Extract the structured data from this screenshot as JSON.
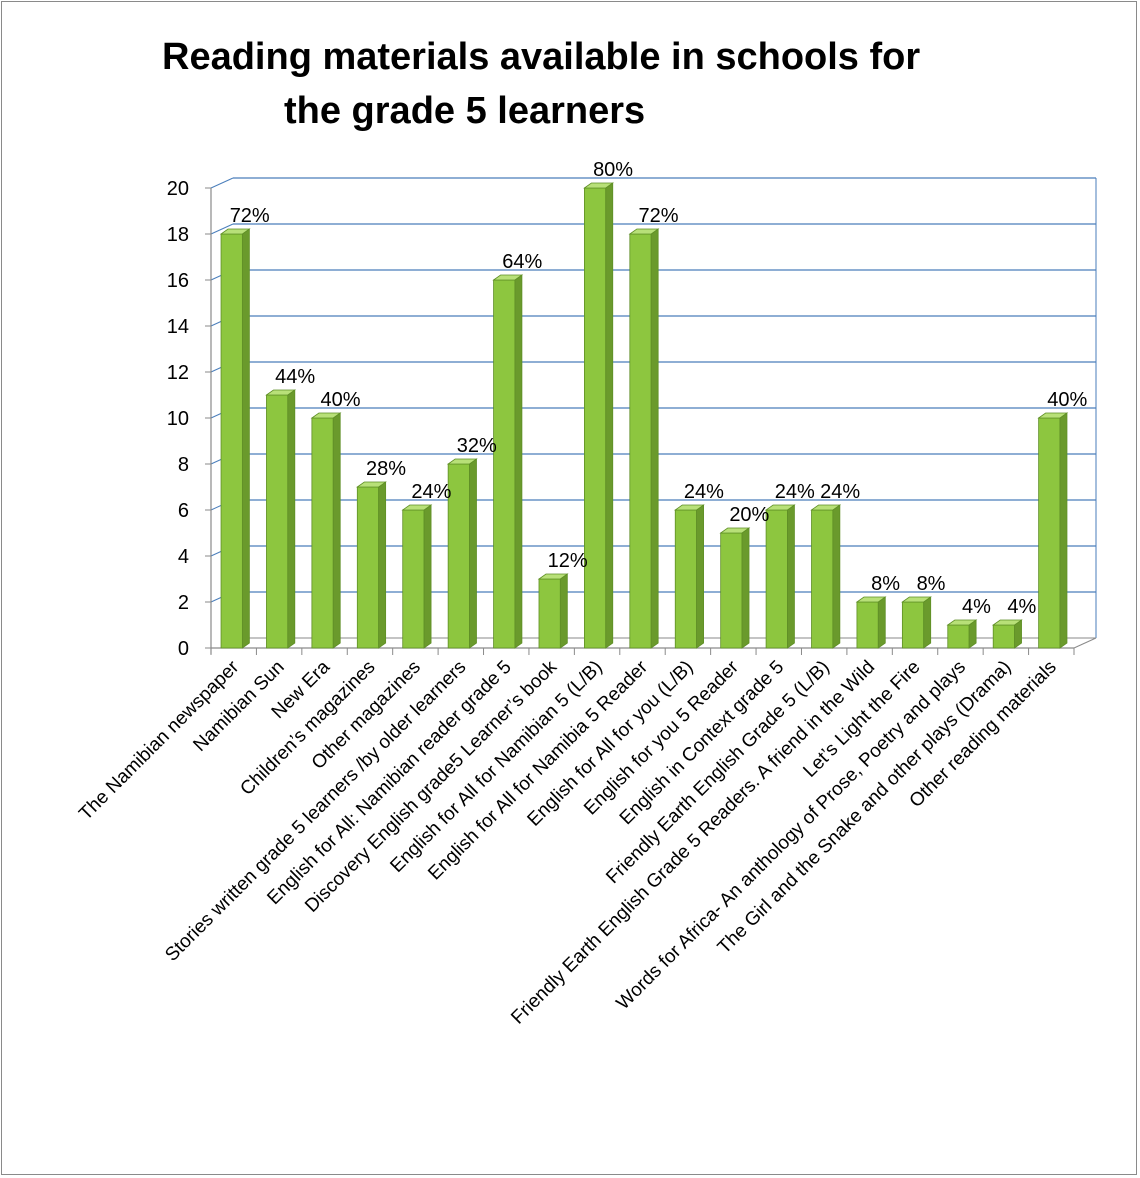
{
  "chart_data": {
    "type": "bar",
    "title": [
      "Reading materials available in schools for",
      "the grade 5 learners"
    ],
    "xlabel": "",
    "ylabel": "",
    "ylim": [
      0,
      20
    ],
    "yticks": [
      0,
      2,
      4,
      6,
      8,
      10,
      12,
      14,
      16,
      18,
      20
    ],
    "grid": true,
    "legend": "none",
    "bar_color": "#8dc63f",
    "bar_side_color": "#6a9a2c",
    "bar_top_color": "#b8e078",
    "grid_color": "#4a7ebb",
    "categories": [
      "The Namibian newspaper",
      "Namibian Sun",
      "New Era",
      "Children’s magazines",
      "Other magazines",
      "Stories written grade 5 learners /by older learners",
      "English for All: Namibian reader grade 5",
      "Discovery English grade5 Learner’s book",
      "English for All for Namibian 5 (L/B)",
      "English for All for Namibia 5 Reader",
      "English for All for you (L/B)",
      "English for you 5 Reader",
      "English in Context grade 5",
      "Friendly Earth English Grade 5 (L/B)",
      "Friendly Earth English Grade 5 Readers. A friend in the Wild",
      "Let’s Light the Fire",
      "Words for Africa- An anthology of Prose, Poetry and plays",
      "The Girl and the Snake and other plays (Drama)",
      "Other reading materials"
    ],
    "values": [
      18,
      11,
      10,
      7,
      6,
      8,
      16,
      3,
      20,
      18,
      6,
      5,
      6,
      6,
      2,
      2,
      1,
      1,
      10
    ],
    "data_labels": [
      "72%",
      "44%",
      "40%",
      "28%",
      "24%",
      "32%",
      "64%",
      "12%",
      "80%",
      "72%",
      "24%",
      "20%",
      "24%",
      "24%",
      "8%",
      "8%",
      "4%",
      "4%",
      "40%"
    ]
  }
}
